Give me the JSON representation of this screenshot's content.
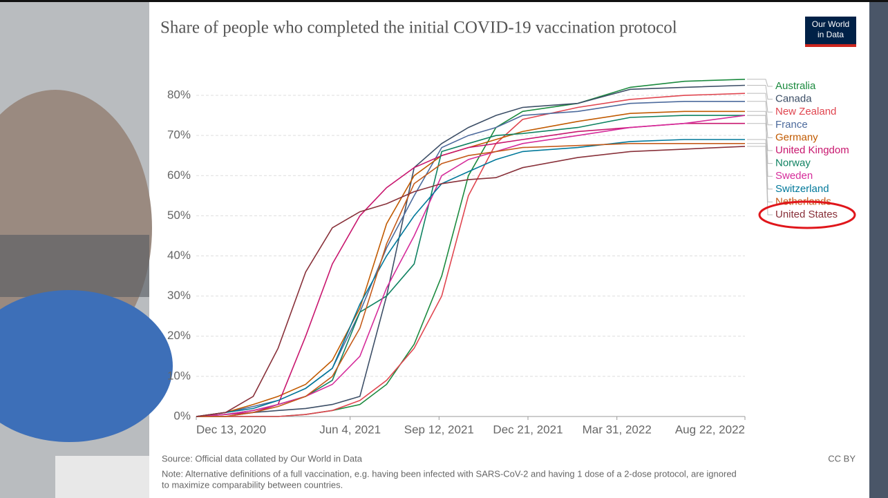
{
  "chart_data": {
    "type": "line",
    "title": "Share of people who completed the initial COVID-19 vaccination protocol",
    "logo": [
      "Our World",
      "in Data"
    ],
    "source": "Source: Official data collated by Our World in Data",
    "license": "CC BY",
    "note": [
      "Note: Alternative definitions of a full vaccination, e.g. having been infected with SARS-CoV-2 and having 1 dose of a 2-dose protocol, are ignored",
      "to maximize comparability between countries."
    ],
    "x": [
      "Dec 13, 2020",
      "Jan 15, 2021",
      "Feb 15, 2021",
      "Mar 15, 2021",
      "Apr 15, 2021",
      "May 15, 2021",
      "Jun 15, 2021",
      "Jul 15, 2021",
      "Aug 15, 2021",
      "Sep 15, 2021",
      "Oct 15, 2021",
      "Nov 15, 2021",
      "Dec 15, 2021",
      "Feb 15, 2022",
      "Apr 15, 2022",
      "Jun 15, 2022",
      "Aug 22, 2022"
    ],
    "xlim": [
      "Dec 13, 2020",
      "Aug 22, 2022"
    ],
    "xticks": [
      "Dec 13, 2020",
      "Jun 4, 2021",
      "Sep 12, 2021",
      "Dec 21, 2021",
      "Mar 31, 2022",
      "Aug 22, 2022"
    ],
    "ylim": [
      0,
      85
    ],
    "yticks": [
      {
        "value": 0,
        "label": "0%"
      },
      {
        "value": 10,
        "label": "10%"
      },
      {
        "value": 20,
        "label": "20%"
      },
      {
        "value": 30,
        "label": "30%"
      },
      {
        "value": 40,
        "label": "40%"
      },
      {
        "value": 50,
        "label": "50%"
      },
      {
        "value": 60,
        "label": "60%"
      },
      {
        "value": 70,
        "label": "70%"
      },
      {
        "value": 80,
        "label": "80%"
      }
    ],
    "grid": true,
    "series": [
      {
        "name": "Australia",
        "color": "#1b8a3e",
        "values": [
          0,
          0,
          0,
          0,
          0.5,
          1.5,
          3,
          8,
          18,
          35,
          60,
          72,
          76,
          78,
          82,
          83.5,
          84
        ]
      },
      {
        "name": "Canada",
        "color": "#3c4e66",
        "values": [
          0,
          0,
          1,
          1.5,
          2,
          3,
          5,
          30,
          62,
          68,
          72,
          75,
          77,
          78,
          81.5,
          82,
          82.5
        ]
      },
      {
        "name": "New Zealand",
        "color": "#e0454f",
        "values": [
          0,
          0,
          0,
          0,
          0.5,
          1.5,
          4,
          9,
          17,
          30,
          55,
          68,
          74,
          77,
          79,
          80,
          80.5
        ]
      },
      {
        "name": "France",
        "color": "#4c6a9c",
        "values": [
          0,
          1,
          2.5,
          4,
          7,
          12,
          26,
          42,
          55,
          67,
          70,
          72,
          75,
          76,
          78,
          78.5,
          78.5
        ]
      },
      {
        "name": "Germany",
        "color": "#c15a00",
        "values": [
          0,
          1,
          3,
          5,
          8,
          14,
          27,
          48,
          60,
          65,
          67,
          69,
          71,
          73.5,
          75.5,
          76,
          76
        ]
      },
      {
        "name": "United Kingdom",
        "color": "#c8166e",
        "values": [
          0,
          0.5,
          1,
          3,
          20,
          38,
          50,
          57,
          62,
          65,
          67,
          68,
          69,
          71,
          72,
          73,
          73
        ]
      },
      {
        "name": "Norway",
        "color": "#0f8261",
        "values": [
          0,
          0.5,
          1.5,
          3,
          5,
          9,
          26,
          30,
          38,
          66,
          68,
          70,
          70.5,
          72,
          74.5,
          75,
          75
        ]
      },
      {
        "name": "Sweden",
        "color": "#d52b9a",
        "values": [
          0,
          0.5,
          1.5,
          3,
          5,
          8,
          15,
          32,
          45,
          60,
          64,
          66,
          68,
          70,
          72,
          73,
          75
        ]
      },
      {
        "name": "Switzerland",
        "color": "#00789a",
        "values": [
          0,
          1,
          2,
          4,
          7,
          12,
          28,
          40,
          50,
          58,
          61,
          64,
          66,
          67,
          68.5,
          69,
          69
        ]
      },
      {
        "name": "Netherlands",
        "color": "#c45a1a",
        "values": [
          0,
          0,
          1,
          2.5,
          5,
          10,
          22,
          43,
          58,
          63,
          65,
          66,
          67,
          67.5,
          68,
          68,
          68
        ]
      },
      {
        "name": "United States",
        "color": "#883039",
        "values": [
          0,
          1,
          5,
          17,
          36,
          47,
          51,
          53,
          56,
          58,
          59,
          59.5,
          62,
          64.5,
          66,
          66.6,
          67.3
        ]
      }
    ]
  }
}
